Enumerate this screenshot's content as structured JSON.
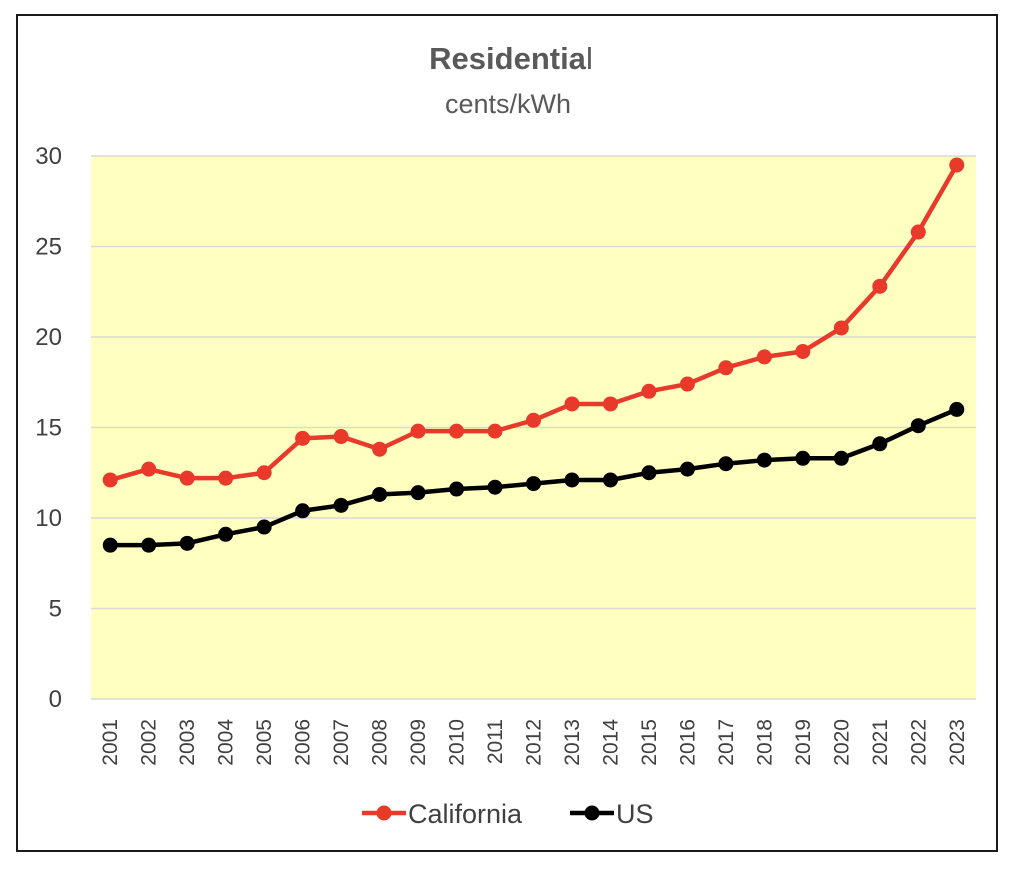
{
  "chart_data": {
    "type": "line",
    "title": {
      "bold": "Residentia",
      "rest": "l"
    },
    "subtitle": "cents/kWh",
    "xlabel": "",
    "ylabel": "",
    "ylim": [
      0,
      30
    ],
    "yticks": [
      0,
      5,
      10,
      15,
      20,
      25,
      30
    ],
    "grid": true,
    "plot_background": "#ffffc0",
    "legend_position": "bottom",
    "categories": [
      "2001",
      "2002",
      "2003",
      "2004",
      "2005",
      "2006",
      "2007",
      "2008",
      "2009",
      "2010",
      "2011",
      "2012",
      "2013",
      "2014",
      "2015",
      "2016",
      "2017",
      "2018",
      "2019",
      "2020",
      "2021",
      "2022",
      "2023"
    ],
    "series": [
      {
        "name": "California",
        "color": "#e8392b",
        "values": [
          12.1,
          12.7,
          12.2,
          12.2,
          12.5,
          14.4,
          14.5,
          13.8,
          14.8,
          14.8,
          14.8,
          15.4,
          16.3,
          16.3,
          17.0,
          17.4,
          18.3,
          18.9,
          19.2,
          20.5,
          22.8,
          25.8,
          29.5
        ]
      },
      {
        "name": "US",
        "color": "#000000",
        "values": [
          8.5,
          8.5,
          8.6,
          9.1,
          9.5,
          10.4,
          10.7,
          11.3,
          11.4,
          11.6,
          11.7,
          11.9,
          12.1,
          12.1,
          12.5,
          12.7,
          13.0,
          13.2,
          13.3,
          13.3,
          14.1,
          15.1,
          16.0
        ]
      }
    ]
  }
}
